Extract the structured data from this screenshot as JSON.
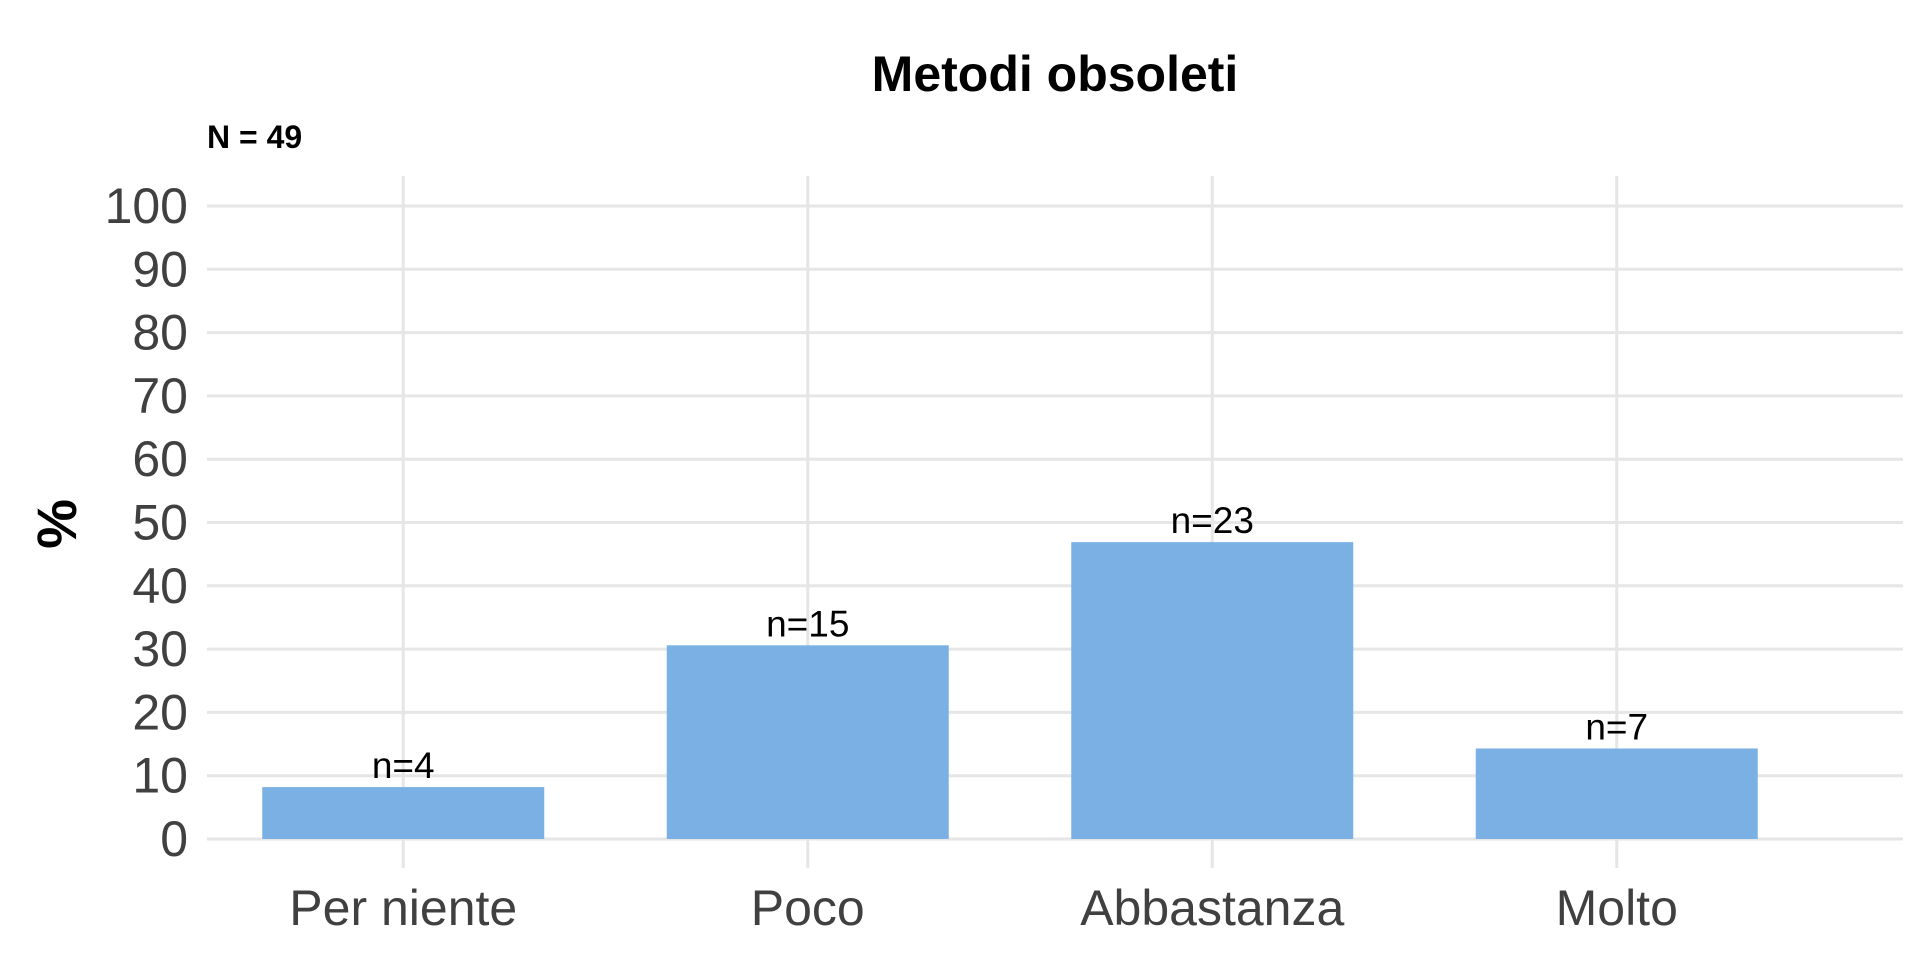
{
  "chart_data": {
    "type": "bar",
    "title": "Metodi obsoleti",
    "subtitle": "N = 49",
    "xlabel": "",
    "ylabel": "%",
    "categories": [
      "Per niente",
      "Poco",
      "Abbastanza",
      "Molto"
    ],
    "values": [
      8.2,
      30.6,
      46.9,
      14.3
    ],
    "data_labels": [
      "n=4",
      "n=15",
      "n=23",
      "n=7"
    ],
    "ylim": [
      0,
      100
    ],
    "yticks": [
      "0",
      "10",
      "20",
      "30",
      "40",
      "50",
      "60",
      "70",
      "80",
      "90",
      "100"
    ],
    "grid": true,
    "bar_color": "#7AB0E4"
  }
}
